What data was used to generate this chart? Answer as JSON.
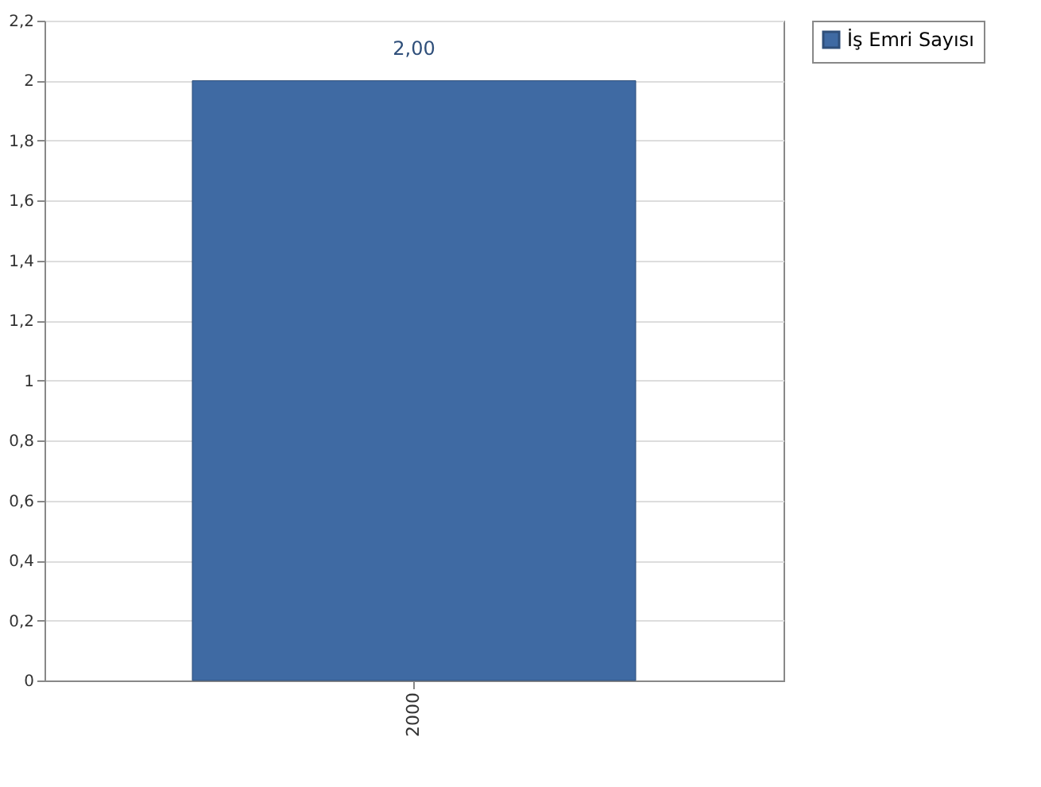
{
  "chart_data": {
    "type": "bar",
    "categories": [
      "2000"
    ],
    "series": [
      {
        "name": "İş Emri Sayısı",
        "color": "#3f6aa3",
        "values": [
          2
        ]
      }
    ],
    "value_labels": [
      "2,00"
    ],
    "ylim": [
      0,
      2.2
    ],
    "yticks": [
      0,
      {
        "value": 0.2,
        "label": "0,2"
      },
      {
        "value": 0.4,
        "label": "0,4"
      },
      {
        "value": 0.6,
        "label": "0,6"
      },
      {
        "value": 0.8,
        "label": "0,8"
      },
      1,
      {
        "value": 1.2,
        "label": "1,2"
      },
      {
        "value": 1.4,
        "label": "1,4"
      },
      {
        "value": 1.6,
        "label": "1,6"
      },
      {
        "value": 1.8,
        "label": "1,8"
      },
      2,
      {
        "value": 2.2,
        "label": "2,2"
      }
    ],
    "grid": "y",
    "legend": "top right"
  }
}
